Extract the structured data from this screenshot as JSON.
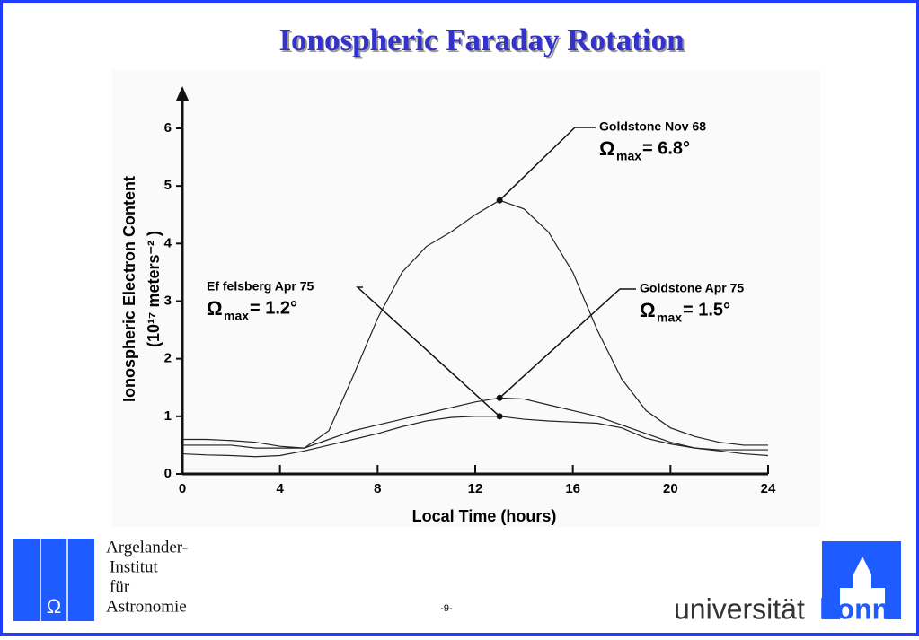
{
  "slide": {
    "title": "Ionospheric Faraday Rotation",
    "institute": [
      "Argelander-",
      "Institut",
      "für",
      "Astronomie"
    ],
    "university": [
      "universität",
      "bonn"
    ],
    "page": "-9-"
  },
  "chart_data": {
    "type": "line",
    "x_label": "Local Time   (hours)",
    "y_label": [
      "Ionospheric   Electron   Content",
      "(10¹⁷   meters⁻²  )"
    ],
    "x": [
      0,
      1,
      2,
      3,
      4,
      5,
      6,
      7,
      8,
      9,
      10,
      11,
      12,
      13,
      14,
      15,
      16,
      17,
      18,
      19,
      20,
      21,
      22,
      23,
      24
    ],
    "xlim": [
      0,
      24
    ],
    "xticks": [
      0,
      4,
      8,
      12,
      16,
      20,
      24
    ],
    "ylim": [
      0,
      6
    ],
    "yticks": [
      0,
      1,
      2,
      3,
      4,
      5,
      6
    ],
    "series": [
      {
        "name": "Goldstone      Nov   68",
        "color": "#222222",
        "values": [
          0.5,
          0.5,
          0.5,
          0.45,
          0.45,
          0.45,
          0.75,
          1.7,
          2.7,
          3.5,
          3.95,
          4.2,
          4.5,
          4.75,
          4.6,
          4.2,
          3.5,
          2.5,
          1.65,
          1.1,
          0.8,
          0.65,
          0.55,
          0.5,
          0.5
        ],
        "marker_x": 13,
        "marker_y": 4.75,
        "omega": "Ω",
        "sub": "max",
        "omega_value": "=  6.8°"
      },
      {
        "name": "Goldstone      Apr   75",
        "color": "#222222",
        "values": [
          0.6,
          0.6,
          0.58,
          0.55,
          0.48,
          0.45,
          0.6,
          0.75,
          0.85,
          0.95,
          1.05,
          1.15,
          1.25,
          1.32,
          1.3,
          1.2,
          1.1,
          1.0,
          0.85,
          0.7,
          0.55,
          0.45,
          0.4,
          0.35,
          0.32
        ],
        "marker_x": 13,
        "marker_y": 1.32,
        "omega": "Ω",
        "sub": "max",
        "omega_value": "=  1.5°"
      },
      {
        "name": "Ef felsberg   Apr   75",
        "color": "#222222",
        "values": [
          0.35,
          0.33,
          0.32,
          0.3,
          0.32,
          0.4,
          0.5,
          0.6,
          0.7,
          0.82,
          0.92,
          0.98,
          1.0,
          1.0,
          0.95,
          0.92,
          0.9,
          0.88,
          0.8,
          0.62,
          0.52,
          0.45,
          0.42,
          0.42,
          0.42
        ],
        "marker_x": 13,
        "marker_y": 1.0,
        "omega": "Ω",
        "sub": "max",
        "omega_value": "=  1.2°"
      }
    ]
  }
}
